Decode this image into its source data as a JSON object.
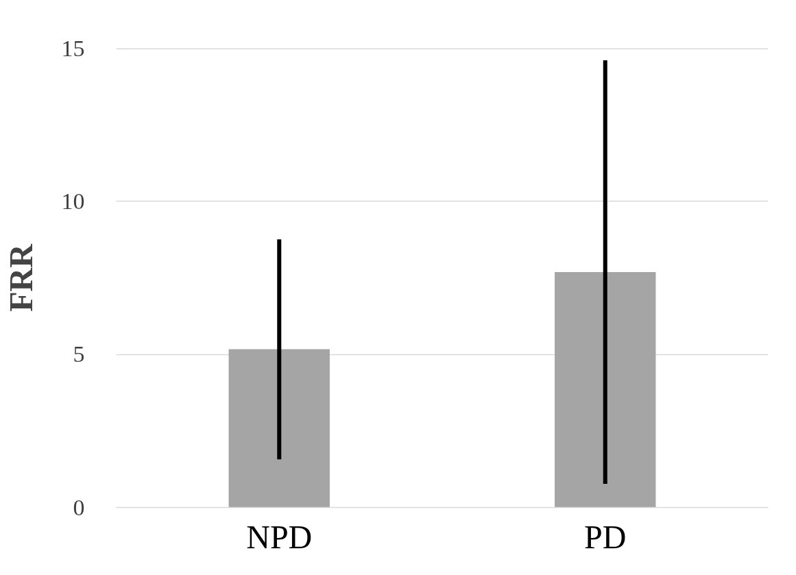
{
  "chart_data": {
    "type": "bar",
    "ylabel": "FRR",
    "categories": [
      "NPD",
      "PD"
    ],
    "values": [
      5.17,
      7.69
    ],
    "errors": [
      [
        1.57,
        8.76
      ],
      [
        0.77,
        14.61
      ]
    ],
    "color": "#a5a5a5",
    "ylim": [
      0,
      15
    ],
    "yticks": [
      0,
      5,
      10,
      15
    ],
    "grid": "y"
  }
}
